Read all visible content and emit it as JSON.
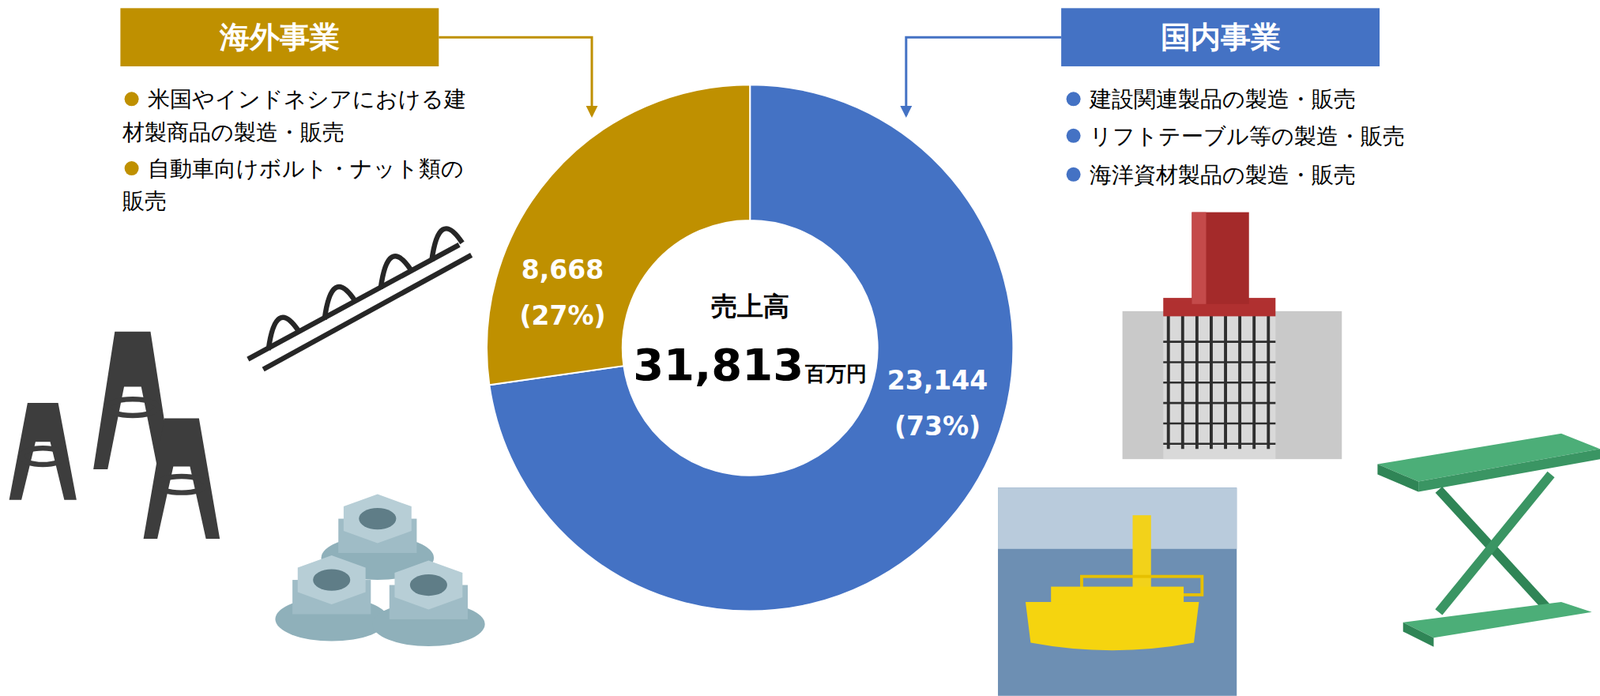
{
  "chart_data": {
    "type": "donut",
    "title": "売上高",
    "total": {
      "value": 31813,
      "label": "31,813"
    },
    "unit": "百万円",
    "categories": [
      "国内事業",
      "海外事業"
    ],
    "values": [
      23144,
      8668
    ],
    "value_labels": [
      "23,144",
      "8,668"
    ],
    "percents": [
      73,
      27
    ],
    "percent_labels": [
      "(73%)",
      "(27%)"
    ],
    "colors": [
      "#4472C4",
      "#BF9000"
    ],
    "data_labels": true,
    "descriptions": [
      [
        "建設関連製品の製造・販売",
        "リフトテーブル等の製造・販売",
        "海洋資材製品の製造・販売"
      ],
      [
        "米国やインドネシアにおける建材製商品の製造・販売",
        "自動車向けボルト・ナット類の販売"
      ]
    ]
  }
}
